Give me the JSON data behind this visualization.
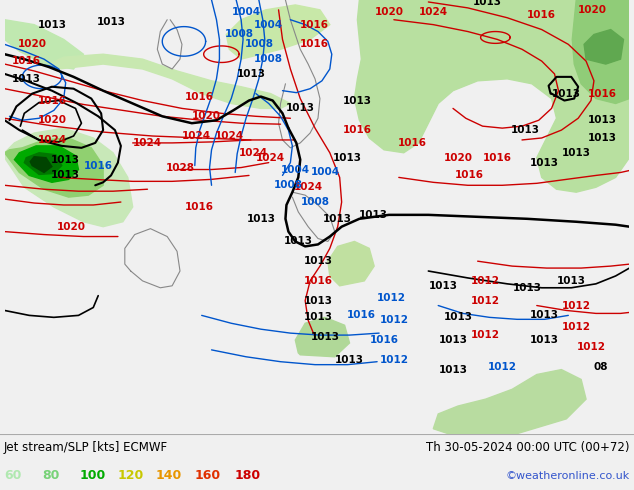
{
  "title_left": "Jet stream/SLP [kts] ECMWF",
  "title_right": "Th 30-05-2024 00:00 UTC (00+72)",
  "watermark": "©weatheronline.co.uk",
  "legend_values": [
    "60",
    "80",
    "100",
    "120",
    "140",
    "160",
    "180"
  ],
  "legend_colors": [
    "#b0e8b0",
    "#78d278",
    "#00aa00",
    "#c8c800",
    "#e89600",
    "#e03000",
    "#cc0000"
  ],
  "bg_color": "#f0f0f0",
  "map_bg_light": "#f4f4f4",
  "map_bg_green_light": "#c8e8c0",
  "map_bg_green_mid": "#a0d890",
  "bottom_bar_color": "#f0f0f0",
  "watermark_color": "#3355cc",
  "figsize": [
    6.34,
    4.9
  ],
  "dpi": 100,
  "red_color": "#cc0000",
  "blue_color": "#0055cc",
  "black_color": "#000000",
  "gray_color": "#888888"
}
